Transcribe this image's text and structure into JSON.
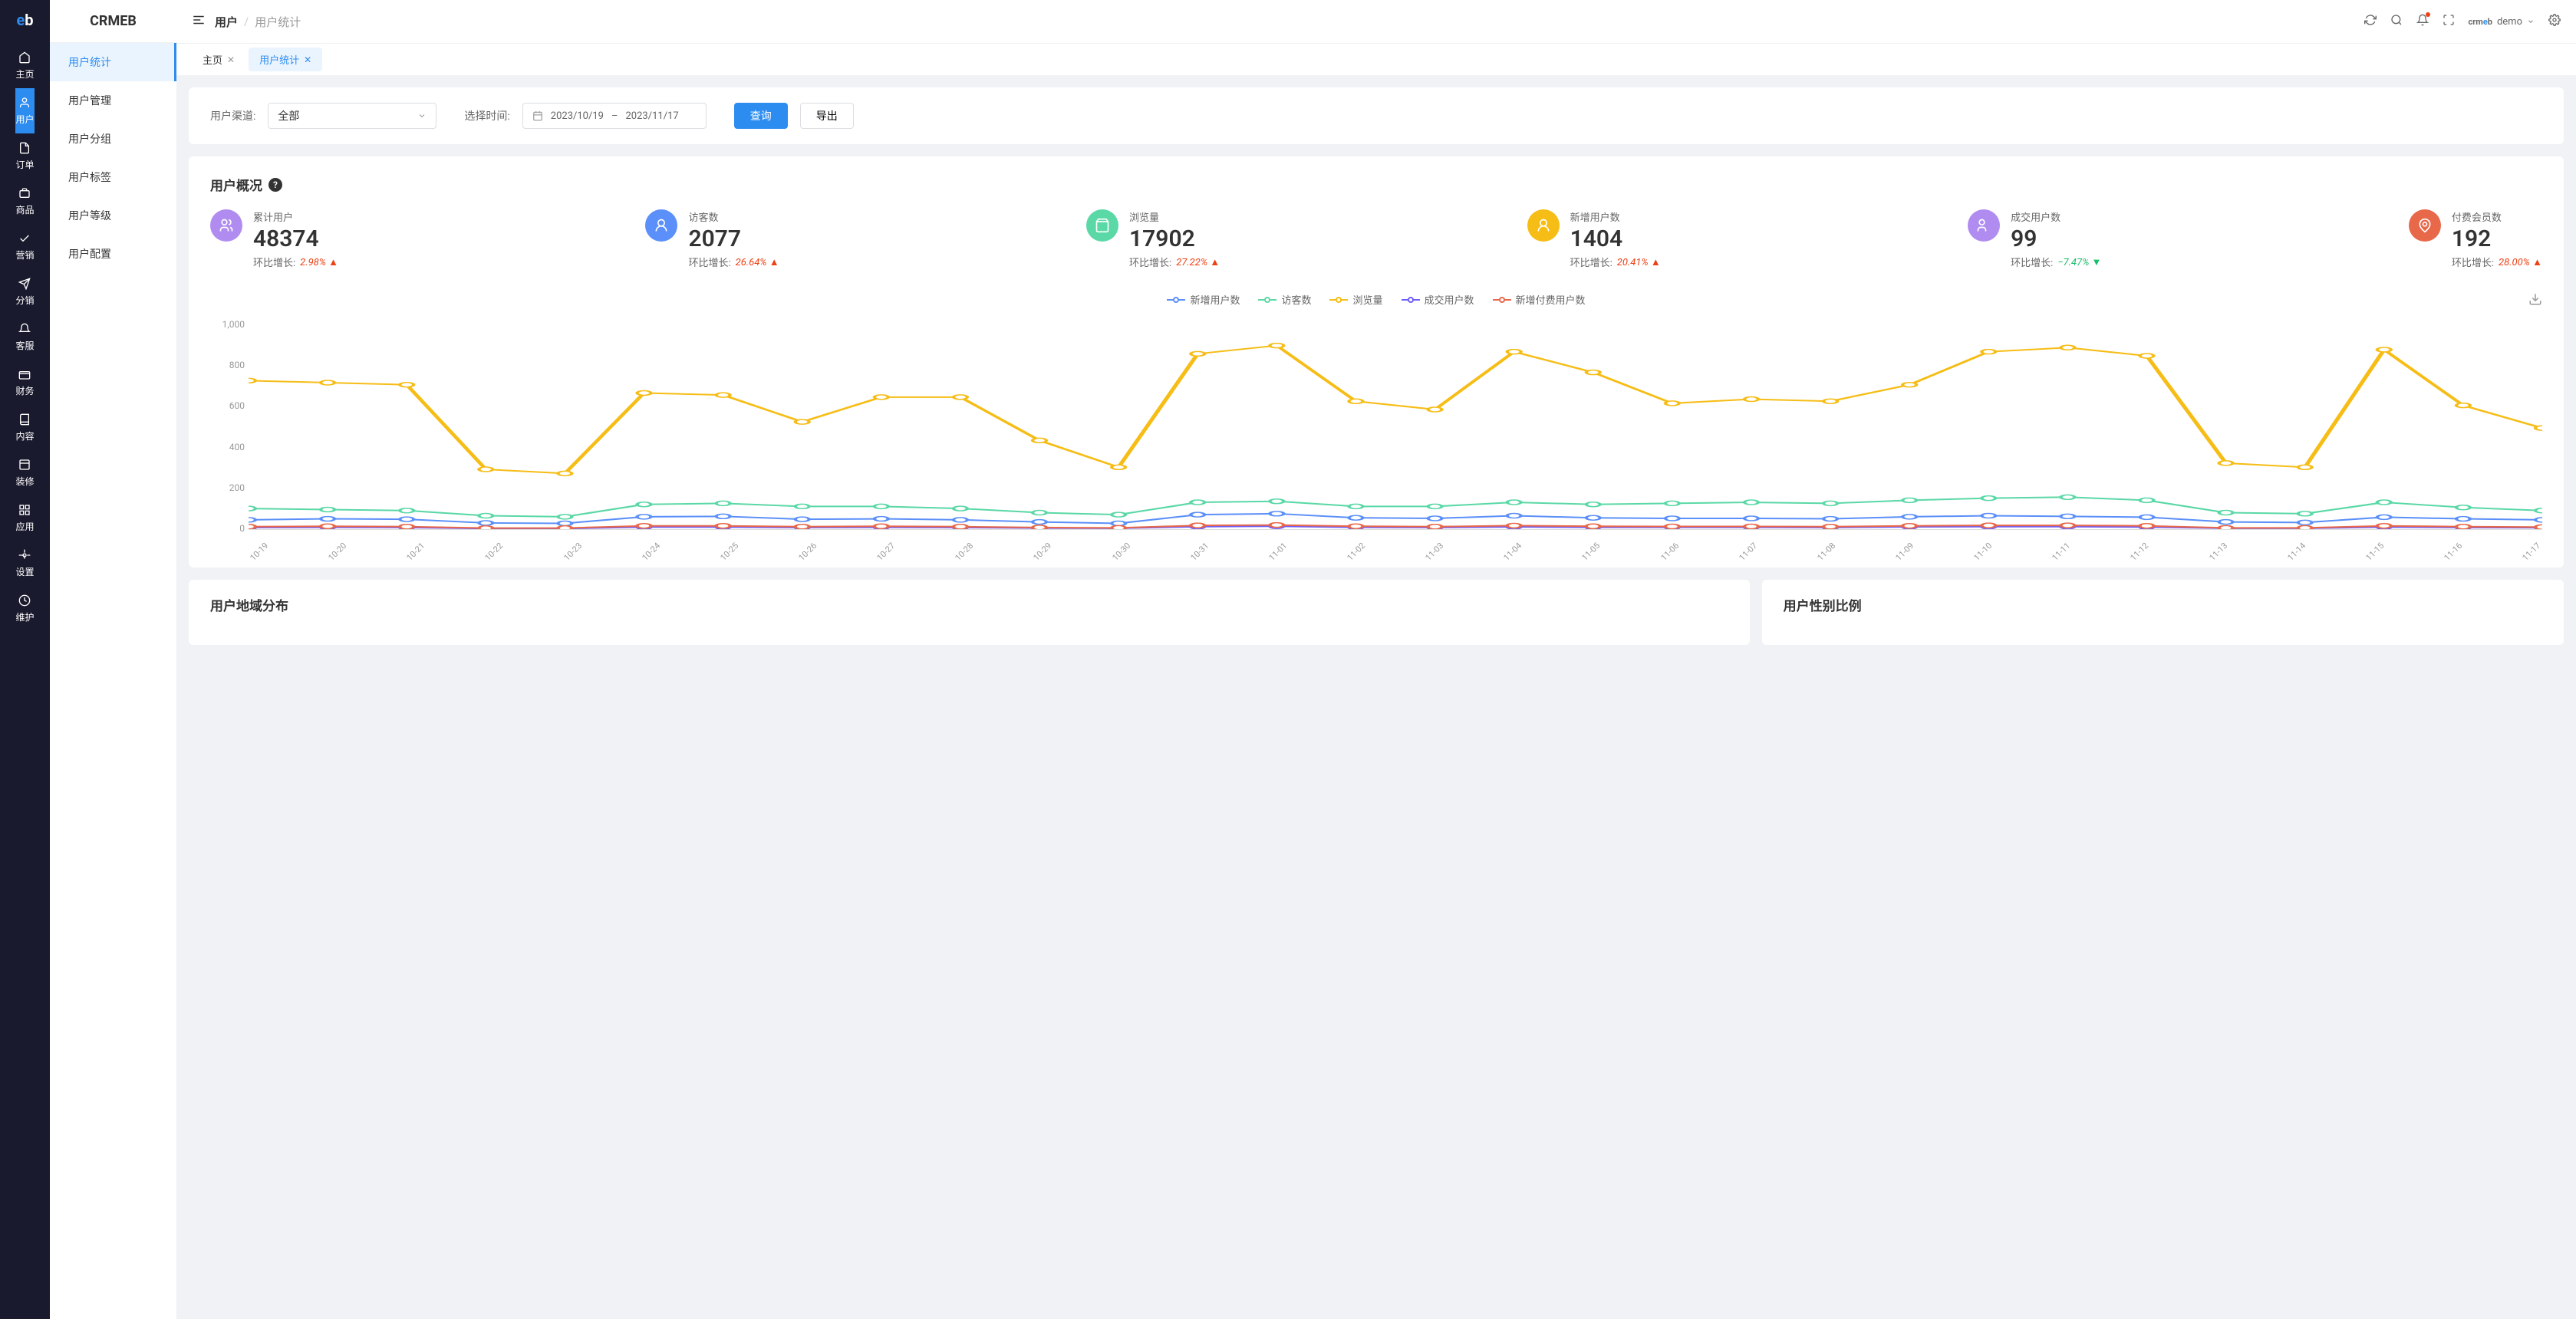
{
  "brand": "CRMEB",
  "user_label": "demo",
  "darkNav": [
    {
      "label": "主页",
      "icon": "home"
    },
    {
      "label": "用户",
      "icon": "user",
      "active": true
    },
    {
      "label": "订单",
      "icon": "order"
    },
    {
      "label": "商品",
      "icon": "product"
    },
    {
      "label": "营销",
      "icon": "marketing"
    },
    {
      "label": "分销",
      "icon": "dist"
    },
    {
      "label": "客服",
      "icon": "service"
    },
    {
      "label": "财务",
      "icon": "finance"
    },
    {
      "label": "内容",
      "icon": "content"
    },
    {
      "label": "装修",
      "icon": "decor"
    },
    {
      "label": "应用",
      "icon": "app"
    },
    {
      "label": "设置",
      "icon": "setting"
    },
    {
      "label": "维护",
      "icon": "maintain"
    }
  ],
  "lightNav": [
    {
      "label": "用户统计",
      "active": true
    },
    {
      "label": "用户管理"
    },
    {
      "label": "用户分组"
    },
    {
      "label": "用户标签"
    },
    {
      "label": "用户等级"
    },
    {
      "label": "用户配置"
    }
  ],
  "breadcrumb": {
    "root": "用户",
    "current": "用户统计"
  },
  "tabs": [
    {
      "label": "主页"
    },
    {
      "label": "用户统计",
      "active": true
    }
  ],
  "filter": {
    "channel_label": "用户渠道:",
    "channel_value": "全部",
    "time_label": "选择时间:",
    "date_start": "2023/10/19",
    "date_sep": "–",
    "date_end": "2023/11/17",
    "query_btn": "查询",
    "export_btn": "导出"
  },
  "overview": {
    "title": "用户概况",
    "growth_label": "环比增长:",
    "stats": [
      {
        "label": "累计用户",
        "value": "48374",
        "growth": "2.98%",
        "dir": "up",
        "icon_color": "#b18cf0"
      },
      {
        "label": "访客数",
        "value": "2077",
        "growth": "26.64%",
        "dir": "up",
        "icon_color": "#5b8ff9"
      },
      {
        "label": "浏览量",
        "value": "17902",
        "growth": "27.22%",
        "dir": "up",
        "icon_color": "#5ad8a6"
      },
      {
        "label": "新增用户数",
        "value": "1404",
        "growth": "20.41%",
        "dir": "up",
        "icon_color": "#f6bd16"
      },
      {
        "label": "成交用户数",
        "value": "99",
        "growth": "−7.47%",
        "dir": "down",
        "icon_color": "#b18cf0"
      },
      {
        "label": "付费会员数",
        "value": "192",
        "growth": "28.00%",
        "dir": "up",
        "icon_color": "#e8684a"
      }
    ]
  },
  "chart": {
    "type": "line",
    "ylim": [
      0,
      1000
    ],
    "ytick_step": 200,
    "y_ticks": [
      "1,000",
      "800",
      "600",
      "400",
      "200",
      "0"
    ],
    "x_labels": [
      "10-19",
      "10-20",
      "10-21",
      "10-22",
      "10-23",
      "10-24",
      "10-25",
      "10-26",
      "10-27",
      "10-28",
      "10-29",
      "10-30",
      "10-31",
      "11-01",
      "11-02",
      "11-03",
      "11-04",
      "11-05",
      "11-06",
      "11-07",
      "11-08",
      "11-09",
      "11-10",
      "11-11",
      "11-12",
      "11-13",
      "11-14",
      "11-15",
      "11-16",
      "11-17"
    ],
    "legend": [
      {
        "label": "新增用户数",
        "color": "#5b8ff9"
      },
      {
        "label": "访客数",
        "color": "#5ad8a6"
      },
      {
        "label": "浏览量",
        "color": "#f6bd16"
      },
      {
        "label": "成交用户数",
        "color": "#6f5ef9"
      },
      {
        "label": "新增付费用户数",
        "color": "#e8684a"
      }
    ],
    "series": [
      {
        "name": "浏览量",
        "color": "#f6bd16",
        "values": [
          720,
          710,
          700,
          290,
          270,
          660,
          650,
          520,
          640,
          640,
          430,
          300,
          850,
          890,
          620,
          580,
          860,
          760,
          610,
          630,
          620,
          700,
          860,
          880,
          840,
          320,
          300,
          870,
          600,
          490
        ]
      },
      {
        "name": "访客数",
        "color": "#5ad8a6",
        "values": [
          100,
          95,
          90,
          65,
          60,
          120,
          125,
          110,
          110,
          100,
          80,
          70,
          130,
          135,
          110,
          110,
          130,
          120,
          125,
          130,
          125,
          140,
          150,
          155,
          140,
          80,
          75,
          130,
          105,
          90
        ]
      },
      {
        "name": "新增用户数",
        "color": "#5b8ff9",
        "values": [
          45,
          50,
          48,
          30,
          28,
          60,
          62,
          48,
          50,
          45,
          35,
          28,
          70,
          75,
          55,
          52,
          65,
          55,
          52,
          52,
          50,
          60,
          65,
          62,
          58,
          35,
          32,
          58,
          50,
          45
        ]
      },
      {
        "name": "成交用户数",
        "color": "#6f5ef9",
        "values": [
          8,
          9,
          8,
          3,
          3,
          10,
          10,
          8,
          9,
          8,
          5,
          4,
          12,
          14,
          9,
          8,
          11,
          9,
          9,
          9,
          8,
          11,
          12,
          12,
          10,
          4,
          4,
          10,
          8,
          7
        ]
      },
      {
        "name": "新增付费用户数",
        "color": "#e8684a",
        "values": [
          12,
          14,
          12,
          5,
          5,
          16,
          16,
          12,
          14,
          12,
          8,
          6,
          18,
          20,
          14,
          12,
          17,
          14,
          13,
          13,
          12,
          16,
          18,
          18,
          16,
          6,
          6,
          16,
          12,
          10
        ]
      }
    ],
    "line_width": 2,
    "marker_radius": 3,
    "background_color": "#ffffff"
  },
  "bottom": {
    "region_title": "用户地域分布",
    "gender_title": "用户性别比例"
  }
}
